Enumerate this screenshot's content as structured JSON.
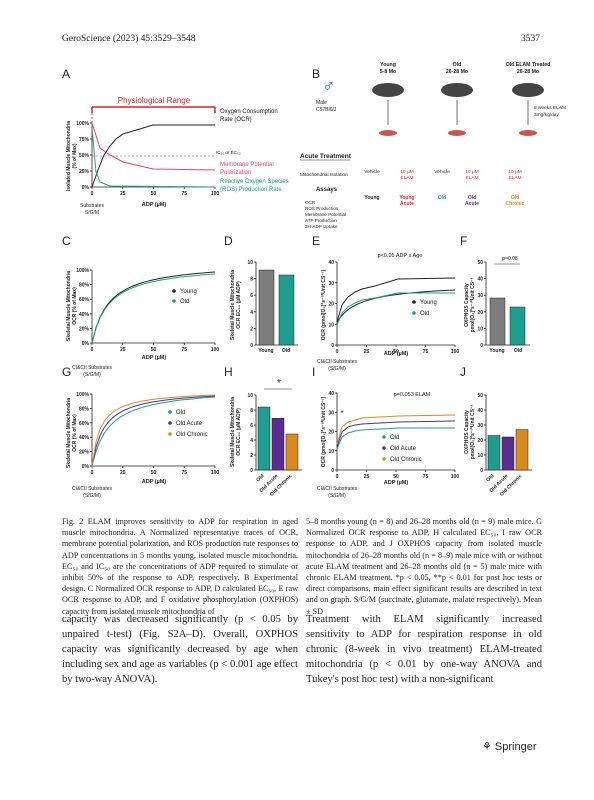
{
  "header": {
    "journal": "GeroScience (2023) 45:3529–3548",
    "page": "3537"
  },
  "figure": {
    "a": {
      "label": "A",
      "range": "Physiological Range",
      "ylabel": [
        "Isolated Muscle Mitochondria",
        "(% of Max)"
      ],
      "yticks": [
        "100%",
        "75%",
        "50%",
        "25%",
        "0%"
      ],
      "xticks": [
        "0",
        "25",
        "50",
        "75",
        "100"
      ],
      "xlabel": "ADP (µM)",
      "substrates": [
        "Substrates",
        "S/G/M"
      ],
      "ic": "IC₅₀ or EC₅₀",
      "legend": [
        [
          "Oxygen Consumption",
          "Rate (OCR)"
        ],
        [
          "Membrane Potential",
          "Polarization"
        ],
        [
          "Reactive Oxygen Species",
          "(ROS) Production Rate"
        ]
      ]
    },
    "b": {
      "label": "B",
      "sex": "♂",
      "groups": [
        [
          "Young",
          "5-8 Mo"
        ],
        [
          "Old",
          "26-28 Mo"
        ],
        [
          "Old ELAM Treated",
          "26-28 Mo"
        ]
      ],
      "strain": [
        "Male",
        "C57Bl6/J"
      ],
      "treatment": [
        "8 weeks ELAM",
        "3mg/kg/day"
      ],
      "acute": "Acute Treatment",
      "isolation": "Mitochondrial Isolation",
      "conds": [
        [
          "Vehicle"
        ],
        [
          "10 µM",
          "ELAM"
        ],
        [
          "Vehicle"
        ],
        [
          "10 µM",
          "ELAM"
        ],
        [
          "10 µM",
          "ELAM"
        ]
      ],
      "names": [
        [
          "Young"
        ],
        [
          "Young",
          "Acute"
        ],
        [
          "Old"
        ],
        [
          "Old",
          "Acute"
        ],
        [
          "Old",
          "Chronic"
        ]
      ],
      "assays": "Assays",
      "assay_list": [
        "OCR",
        "ROS Production",
        "Membrane Potential",
        "ATP Production",
        "3H-ADP Uptake"
      ]
    },
    "c": {
      "label": "C",
      "ylabel": [
        "Skeletal Muscle Mitochondria",
        "OCR (% of Max)"
      ],
      "yticks": [
        "100%",
        "80%",
        "60%",
        "40%",
        "20%",
        "0%"
      ],
      "xticks": [
        "0",
        "25",
        "50",
        "75",
        "100"
      ],
      "xlabel": "ADP (µM)",
      "substrates": [
        "CI&CII Substrates",
        "(S/G/M)"
      ],
      "legend": [
        "Young",
        "Old"
      ]
    },
    "d": {
      "label": "D",
      "ylabel": [
        "Skeletal Muscle Mitochondria",
        "OCR EC₅₀ (µM ADP)"
      ],
      "yticks": [
        "10",
        "8",
        "6",
        "4",
        "2",
        "0"
      ],
      "cats": [
        "Young",
        "Old"
      ]
    },
    "e": {
      "label": "E",
      "note": "p<0.05 ADP x Age",
      "ylabel": "OCR (pmol[O₂]*s⁻¹*Unit CS⁻¹)",
      "yticks": [
        "40",
        "30",
        "20",
        "10",
        "0"
      ],
      "xticks": [
        "0",
        "25",
        "50",
        "75",
        "100"
      ],
      "xlabel": "ADP (µM)",
      "substrates": [
        "CI&CII Substrates",
        "(S/G/M)"
      ],
      "legend": [
        "Young",
        "Old"
      ]
    },
    "f": {
      "label": "F",
      "note": "p=0.08",
      "ylabel": [
        "OXPHOS Capacity",
        "pmol[O₂]*s⁻¹*Unit CS⁻¹"
      ],
      "yticks": [
        "50",
        "40",
        "30",
        "20",
        "10",
        "0"
      ],
      "cats": [
        "Young",
        "Old"
      ]
    },
    "g": {
      "label": "G",
      "ylabel": [
        "Skeletal Muscle Mitochondria",
        "OCR (% of Max)"
      ],
      "yticks": [
        "100%",
        "80%",
        "60%",
        "40%",
        "20%",
        "0%"
      ],
      "xticks": [
        "0",
        "25",
        "50",
        "75",
        "100"
      ],
      "xlabel": "ADP (µM)",
      "substrates": [
        "CI&CII Substrates",
        "(S/G/M)"
      ],
      "legend": [
        "Old",
        "Old Acute",
        "Old Chronic"
      ]
    },
    "h": {
      "label": "H",
      "note": "*",
      "ylabel": [
        "Skeletal Muscle Mitochondria",
        "OCR EC₅₀ (µM ADP)"
      ],
      "yticks": [
        "10",
        "8",
        "6",
        "4",
        "2",
        "0"
      ],
      "cats": [
        "Old",
        "Old Acute",
        "Old Chronic"
      ]
    },
    "i": {
      "label": "I",
      "note": "p=0.053 ELAM",
      "star": "*",
      "ylabel": "OCR (pmol[O₂]*s⁻¹*Unit CS⁻¹)",
      "yticks": [
        "40",
        "30",
        "20",
        "10",
        "0"
      ],
      "xticks": [
        "0",
        "25",
        "50",
        "75",
        "100"
      ],
      "xlabel": "ADP (µM)",
      "substrates": [
        "CI&CII Substrates",
        "(S/G/M)"
      ],
      "legend": [
        "Old",
        "Old Acute",
        "Old Chronic"
      ]
    },
    "j": {
      "label": "J",
      "ylabel": [
        "OXPHOS Capacity",
        "pmol[O₂]*s⁻¹*Unit CS⁻¹"
      ],
      "yticks": [
        "50",
        "40",
        "30",
        "20",
        "10",
        "0"
      ],
      "cats": [
        "Old",
        "Old Acute",
        "Old Chronic"
      ]
    }
  },
  "caption": {
    "left": "Fig. 2 ELAM improves sensitivity to ADP for respiration in aged muscle mitochondria. A Normalized representative traces of OCR, membrane potential polarization, and ROS production rate responses to ADP concentrations in 5 months young, isolated muscle mitochondria. EC₅₀ and IC₅₀ are the concentrations of ADP required to stimulate or inhibit 50% of the response to ADP, respectively. B Experimental design. C Normalized OCR response to ADP, D calculated EC₅₀, E raw OCR response to ADP, and F oxidative phosphorylation (OXPHOS) capacity from isolated muscle mitochondria of",
    "right": "5–8 months young (n = 8) and 26–28 months old (n = 9) male mice. G Normalized OCR response to ADP, H calculated EC₅₀, I raw OCR response to ADP, and J OXPHOS capacity from isolated muscle mitochondria of 26–28 months old (n = 8–9) male mice with or without acute ELAM treatment and 26–28 months old (n = 5) male mice with chronic ELAM treatment. *p < 0.05, **p < 0.01 for post hoc tests or direct comparisons, main effect significant results are described in text and on graph. S/G/M (succinate, glutamate, malate respectively). Mean ± SD"
  },
  "body": {
    "left": "capacity was decreased significantly (p < 0.05 by unpaired t-test) (Fig. S2A–D). Overall, OXPHOS capacity was significantly decreased by age when including sex and age as variables (p < 0.001 age effect by two-way ANOVA).",
    "right": "Treatment with ELAM significantly increased sensitivity to ADP for respiration response in old chronic (8-week in vivo treatment) ELAM-treated mitochondria (p < 0.01 by one-way ANOVA and Tukey's post hoc test) with a non-significant"
  },
  "footer": {
    "publisher": "Springer"
  }
}
